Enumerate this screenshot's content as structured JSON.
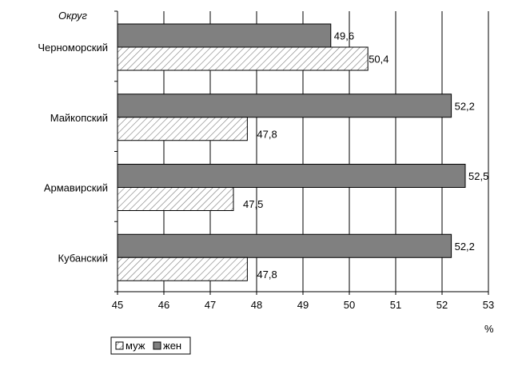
{
  "chart_data": {
    "type": "bar",
    "orientation": "horizontal",
    "title": "",
    "y_axis_title": "Округ",
    "x_axis_unit": "%",
    "categories": [
      "Черноморский",
      "Майкопский",
      "Армавирский",
      "Кубанский"
    ],
    "series": [
      {
        "name": "жен",
        "values": [
          49.6,
          52.2,
          52.5,
          52.2
        ],
        "labels": [
          "49,6",
          "52,2",
          "52,5",
          "52,2"
        ],
        "color": "#808080"
      },
      {
        "name": "муж",
        "values": [
          50.4,
          47.8,
          47.5,
          47.8
        ],
        "labels": [
          "50,4",
          "47,8",
          "47,5",
          "47,8"
        ],
        "pattern": "diagonal-hatch"
      }
    ],
    "xlim": [
      45,
      53
    ],
    "x_ticks": [
      "45",
      "46",
      "47",
      "48",
      "49",
      "50",
      "51",
      "52",
      "53"
    ],
    "grid": true,
    "legend_position": "bottom-left"
  }
}
